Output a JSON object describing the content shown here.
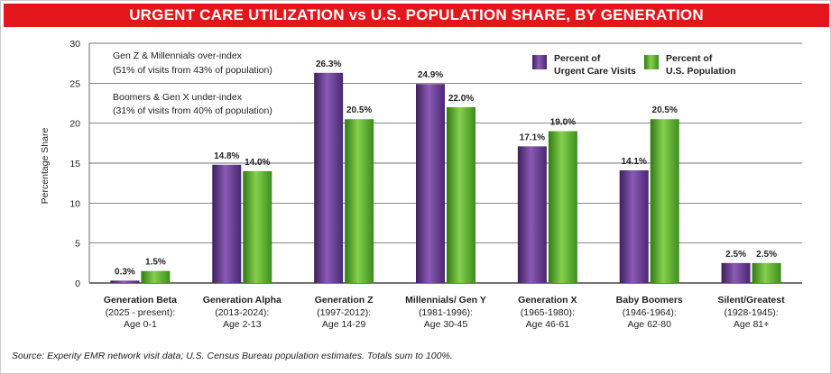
{
  "title": "URGENT CARE UTILIZATION vs U.S. POPULATION SHARE, BY GENERATION",
  "source_note": "Source: Experity EMR network visit data; U.S. Census Bureau population estimates. Totals sum to 100%.",
  "annotations": [
    {
      "headline": "Gen Z & Millennials over-index",
      "detail": "(51% of visits from 43% of population)"
    },
    {
      "headline": "Boomers & Gen X under-index",
      "detail": "(31% of visits from 40% of population)"
    }
  ],
  "colors": {
    "title_bg": "#e3161b",
    "visits": "#6b3b96",
    "population": "#5aab2e",
    "grid": "#333333"
  },
  "chart_data": {
    "type": "bar",
    "title": "URGENT CARE UTILIZATION vs U.S. POPULATION SHARE, BY GENERATION",
    "ylabel": "Percentage Share",
    "xlabel": "",
    "ylim": [
      0,
      30
    ],
    "yticks": [
      0,
      5,
      10,
      15,
      20,
      25,
      30
    ],
    "grid": true,
    "legend_position": "top-right",
    "categories": [
      {
        "name": "Generation Beta",
        "years": "(2025 - present):",
        "ages": "Age 0-1"
      },
      {
        "name": "Generation Alpha",
        "years": "(2013-2024):",
        "ages": "Age 2-13"
      },
      {
        "name": "Generation Z",
        "years": "(1997-2012):",
        "ages": "Age 14-29"
      },
      {
        "name": "Millennials/ Gen Y",
        "years": "(1981-1996):",
        "ages": "Age 30-45"
      },
      {
        "name": "Generation X",
        "years": "(1965-1980):",
        "ages": "Age 46-61"
      },
      {
        "name": "Baby Boomers",
        "years": "(1946-1964):",
        "ages": "Age 62-80"
      },
      {
        "name": "Silent/Greatest",
        "years": "(1928-1945):",
        "ages": "Age 81+"
      }
    ],
    "series": [
      {
        "name": "Percent of Urgent Care Visits",
        "legend_lines": [
          "Percent of",
          "Urgent Care Visits"
        ],
        "color": "#6b3b96",
        "values": [
          0.3,
          14.8,
          26.3,
          24.9,
          17.1,
          14.1,
          2.5
        ]
      },
      {
        "name": "Percent of U.S. Population",
        "legend_lines": [
          "Percent of",
          "U.S. Population"
        ],
        "color": "#5aab2e",
        "values": [
          1.5,
          14.0,
          20.5,
          22.0,
          19.0,
          20.5,
          2.5
        ]
      }
    ]
  }
}
